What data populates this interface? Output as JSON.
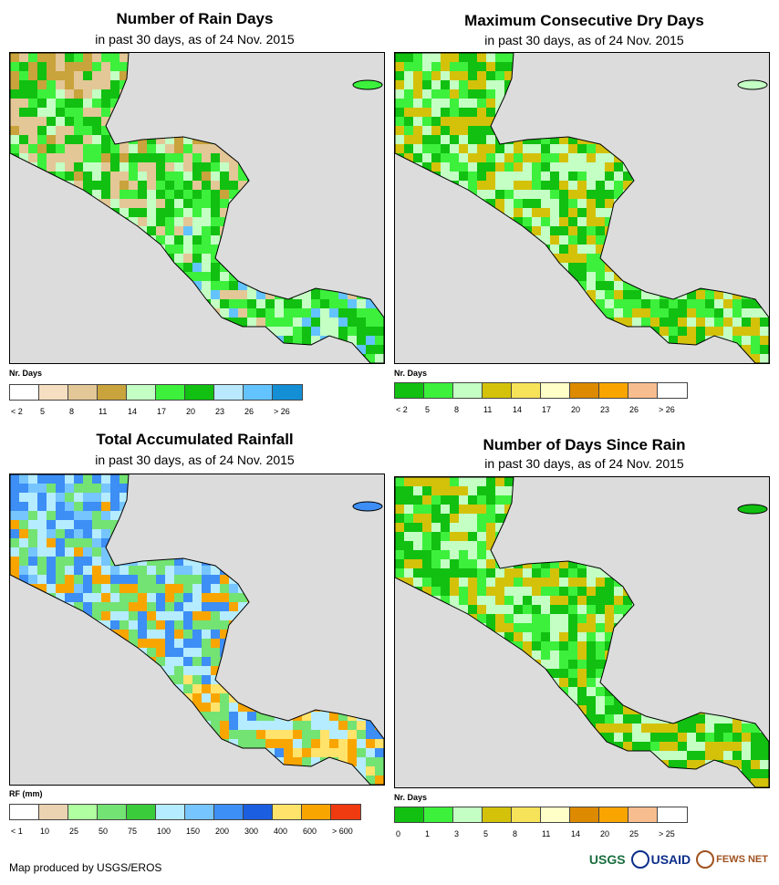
{
  "colors": {
    "ocean": "#dcdcdc",
    "coast": "#000000",
    "brand_usgs": "#1b6e3f",
    "brand_usaid": "#0d2f8a",
    "brand_fews": "#a0521f"
  },
  "panels": [
    {
      "title": "Number of Rain Days",
      "subtitle": "in past 30 days, as of 24 Nov. 2015",
      "legend_title": "Nr. Days",
      "legend_colors": [
        "#ffffff",
        "#f5dfc0",
        "#e3c796",
        "#c9a33c",
        "#c4ffc4",
        "#3cf03c",
        "#11c011",
        "#b9e9ff",
        "#63c3ff",
        "#148fd6"
      ],
      "legend_ticks": [
        "< 2",
        "5",
        "8",
        "11",
        "14",
        "17",
        "20",
        "23",
        "26",
        "> 26"
      ],
      "fill_palette": [
        "#c9a33c",
        "#e3c796",
        "#3cf03c",
        "#11c011",
        "#c4ffc4",
        "#63c3ff"
      ]
    },
    {
      "title": "Maximum Consecutive Dry Days",
      "subtitle": "in past 30 days, as of 24 Nov. 2015",
      "legend_title": "Nr. Days",
      "legend_colors": [
        "#11c011",
        "#3cf03c",
        "#c4ffc4",
        "#d4c20a",
        "#f7e35a",
        "#ffffc8",
        "#dd8a00",
        "#f9a500",
        "#f8bd8e",
        "#ffffff"
      ],
      "legend_ticks": [
        "< 2",
        "5",
        "8",
        "11",
        "14",
        "17",
        "20",
        "23",
        "26",
        "> 26"
      ],
      "fill_palette": [
        "#3cf03c",
        "#11c011",
        "#c4ffc4",
        "#d4c20a",
        "#3cf03c",
        "#11c011"
      ]
    },
    {
      "title": "Total Accumulated Rainfall",
      "subtitle": "in past 30 days, as of 24 Nov. 2015",
      "legend_title": "RF (mm)",
      "legend_colors": [
        "#ffffff",
        "#ebd2b0",
        "#b0ffa0",
        "#73e373",
        "#3bcc3b",
        "#b5ecff",
        "#76c5ff",
        "#3d8ef5",
        "#1b5ee0",
        "#ffe36a",
        "#f9a500",
        "#f03a10"
      ],
      "legend_ticks": [
        "< 1",
        "10",
        "25",
        "50",
        "75",
        "100",
        "150",
        "200",
        "300",
        "400",
        "600",
        "> 600"
      ],
      "fill_palette": [
        "#76c5ff",
        "#3d8ef5",
        "#b5ecff",
        "#73e373",
        "#f9a500",
        "#ffe36a"
      ]
    },
    {
      "title": "Number of Days Since Rain",
      "subtitle": "in past 30 days, as of 24 Nov. 2015",
      "legend_title": "Nr. Days",
      "legend_colors": [
        "#11c011",
        "#3cf03c",
        "#c4ffc4",
        "#d4c20a",
        "#f7e35a",
        "#ffffc8",
        "#dd8a00",
        "#f9a500",
        "#f8bd8e",
        "#ffffff"
      ],
      "legend_ticks": [
        "0",
        "1",
        "3",
        "5",
        "8",
        "11",
        "14",
        "20",
        "25",
        "> 25"
      ],
      "fill_palette": [
        "#c4ffc4",
        "#3cf03c",
        "#11c011",
        "#d4c20a",
        "#c4ffc4",
        "#11c011"
      ]
    }
  ],
  "footer": {
    "credit": "Map produced by USGS/EROS",
    "logo_usgs": "USGS",
    "logo_usaid": "USAID",
    "logo_fews": "FEWS NET"
  }
}
